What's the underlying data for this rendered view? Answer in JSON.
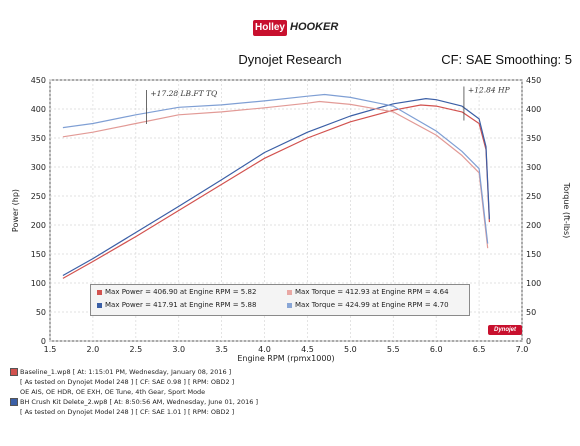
{
  "header": {
    "logo_left": "Holley",
    "logo_right": "HOOKER",
    "title": "Dynojet Research",
    "cf_label": "CF: SAE Smoothing: 5"
  },
  "legend_box": {
    "rows": [
      {
        "label": "Max Power = 406.90 at Engine RPM = 5.82",
        "label2": "Max Torque = 412.93 at Engine RPM = 4.64"
      },
      {
        "label": "Max Power = 417.91 at Engine RPM = 5.88",
        "label2": "Max Torque = 424.99 at Engine RPM = 4.70"
      }
    ]
  },
  "runs": [
    {
      "file": "Baseline_1.wp8 [ At: 1:15:01 PM, Wednesday, January 08, 2016 ]",
      "line2": "[ As tested on Dynojet Model 248 ]  [ CF: SAE 0.98 ]  [ RPM: OBD2 ]",
      "line3": "OE AIS, OE HDR, OE EXH, OE Tune, 4th Gear, Sport Mode"
    },
    {
      "file": "BH Crush Kit Delete_2.wp8 [ At: 8:50:56 AM, Wednesday, June 01, 2016 ]",
      "line2": "[ As tested on Dynojet Model 248 ]  [ CF: SAE 1.01 ]  [ RPM: OBD2 ]",
      "line3": ""
    }
  ],
  "badge": "Dynojet",
  "chart_data": {
    "type": "line",
    "xlabel": "Engine RPM (rpmx1000)",
    "ylabel_left": "Power (hp)",
    "ylabel_right": "Torque (ft-lbs)",
    "xlim": [
      1.5,
      7.0
    ],
    "ylim": [
      0,
      450
    ],
    "x_ticks": [
      "1.5",
      "2.0",
      "2.5",
      "3.0",
      "3.5",
      "4.0",
      "4.5",
      "5.0",
      "5.5",
      "6.0",
      "6.5",
      "7.0"
    ],
    "y_ticks": [
      "0",
      "50",
      "100",
      "150",
      "200",
      "250",
      "300",
      "350",
      "400",
      "450"
    ],
    "colors": {
      "baseline": "#d2524f",
      "modified": "#3b5fa6"
    },
    "series": [
      {
        "key": "power_baseline",
        "x": [
          1.65,
          2.0,
          2.5,
          3.0,
          3.5,
          4.0,
          4.5,
          5.0,
          5.5,
          5.82,
          6.0,
          6.3,
          6.5,
          6.58,
          6.62
        ],
        "y": [
          108,
          137,
          180,
          225,
          270,
          315,
          350,
          378,
          398,
          406.9,
          405,
          395,
          375,
          330,
          205
        ]
      },
      {
        "key": "power_modified",
        "x": [
          1.65,
          2.0,
          2.5,
          3.0,
          3.5,
          4.0,
          4.5,
          5.0,
          5.5,
          5.88,
          6.0,
          6.3,
          6.5,
          6.58,
          6.62
        ],
        "y": [
          113,
          142,
          187,
          232,
          278,
          325,
          360,
          388,
          409,
          417.9,
          416,
          405,
          383,
          335,
          210
        ]
      },
      {
        "key": "torque_baseline",
        "x": [
          1.65,
          2.0,
          2.5,
          3.0,
          3.5,
          4.0,
          4.5,
          4.64,
          5.0,
          5.5,
          6.0,
          6.3,
          6.5,
          6.6
        ],
        "y": [
          352,
          360,
          375,
          390,
          395,
          402,
          410,
          412.9,
          408,
          395,
          355,
          320,
          290,
          160
        ]
      },
      {
        "key": "torque_modified",
        "x": [
          1.65,
          2.0,
          2.5,
          3.0,
          3.5,
          4.0,
          4.5,
          4.7,
          5.0,
          5.5,
          6.0,
          6.3,
          6.5,
          6.6
        ],
        "y": [
          368,
          375,
          390,
          403,
          407,
          414,
          422,
          425,
          420,
          405,
          362,
          327,
          297,
          168
        ]
      }
    ],
    "annotations": [
      {
        "text": "+17.28 LB.FT TQ",
        "x": 2.6,
        "y": 412
      },
      {
        "text": "+12.84 HP",
        "x": 6.3,
        "y": 418
      }
    ]
  }
}
